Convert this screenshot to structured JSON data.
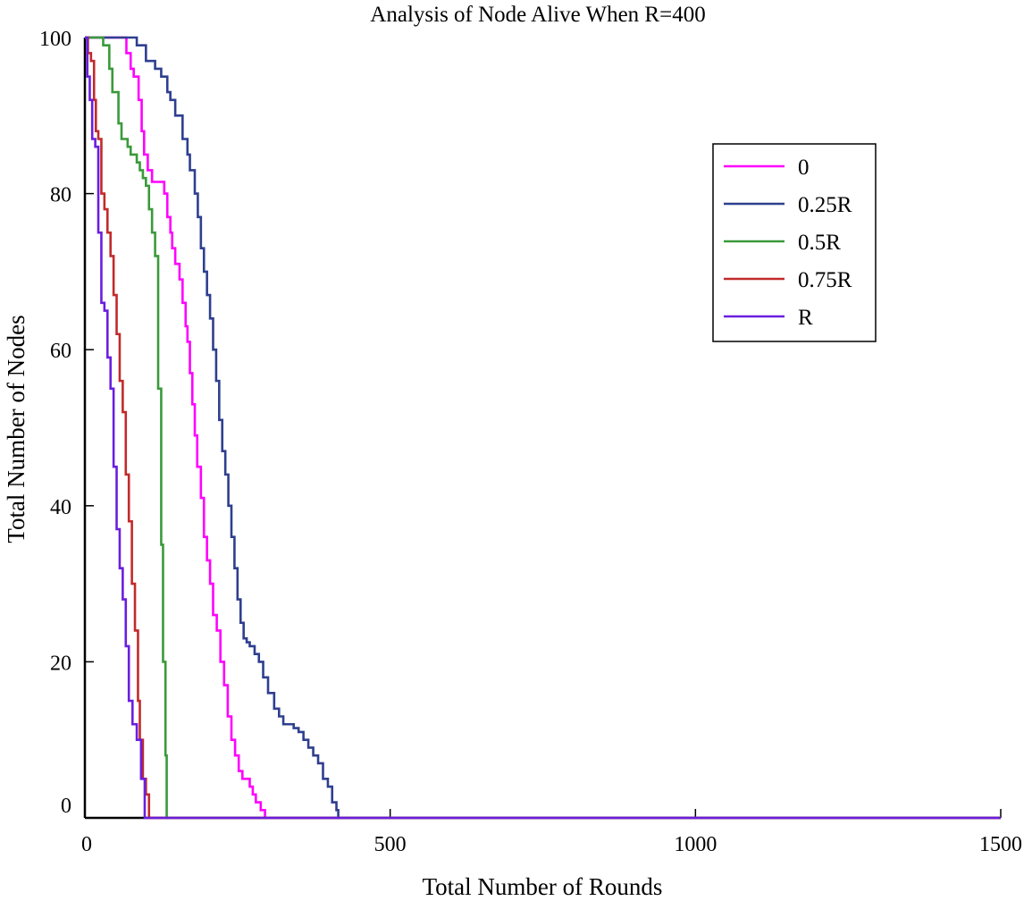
{
  "chart_data": {
    "type": "line",
    "title": "Analysis of Node Alive When R=400",
    "xlabel": "Total Number of Rounds",
    "ylabel": "Total Number of Nodes",
    "xlim": [
      0,
      1500
    ],
    "ylim": [
      0,
      100
    ],
    "xticks": [
      "0",
      "500",
      "1000",
      "1500"
    ],
    "yticks": [
      "0",
      "20",
      "40",
      "60",
      "80",
      "100"
    ],
    "legend_position": "top-right",
    "series": [
      {
        "name": "0",
        "color": "#ff00ff",
        "x": [
          0,
          60,
          68,
          75,
          80,
          88,
          93,
          97,
          103,
          110,
          115,
          130,
          135,
          140,
          143,
          148,
          155,
          160,
          165,
          168,
          172,
          176,
          180,
          184,
          190,
          195,
          200,
          205,
          210,
          216,
          222,
          228,
          234,
          240,
          246,
          252,
          258,
          264,
          270,
          275,
          280,
          288,
          295,
          300,
          305,
          310,
          310,
          1500
        ],
        "y": [
          100,
          100,
          98,
          96,
          95,
          92,
          88,
          85,
          83,
          81.5,
          81.5,
          80,
          77,
          75,
          73,
          71,
          69,
          66,
          63,
          61,
          57,
          53,
          49,
          45,
          41,
          36,
          33,
          30,
          26,
          24,
          20,
          17,
          13,
          10,
          8,
          6,
          5,
          5,
          4,
          3,
          2,
          1,
          0,
          0,
          0,
          0,
          0,
          0
        ]
      },
      {
        "name": "0.25R",
        "color": "#2e3f8f",
        "x": [
          0,
          70,
          85,
          100,
          115,
          125,
          135,
          140,
          148,
          160,
          168,
          172,
          180,
          185,
          190,
          195,
          200,
          205,
          210,
          215,
          220,
          225,
          230,
          235,
          240,
          245,
          250,
          255,
          260,
          265,
          270,
          278,
          285,
          292,
          300,
          310,
          318,
          325,
          333,
          342,
          350,
          358,
          366,
          374,
          382,
          390,
          398,
          405,
          412,
          415,
          415,
          1500
        ],
        "y": [
          100,
          100,
          99,
          97,
          96,
          95,
          93,
          92,
          90,
          87,
          85,
          83,
          80,
          77,
          73,
          70,
          67,
          64,
          60,
          56,
          51,
          47,
          44,
          40,
          36,
          32,
          28,
          25,
          23,
          22.5,
          22,
          21,
          20,
          18,
          16,
          14,
          13,
          12,
          12,
          11.5,
          11,
          10,
          9,
          8,
          7,
          5,
          4,
          2,
          1,
          0,
          0,
          0
        ]
      },
      {
        "name": "0.5R",
        "color": "#3a9a3a",
        "x": [
          0,
          25,
          30,
          40,
          45,
          55,
          60,
          70,
          75,
          85,
          90,
          95,
          100,
          105,
          110,
          115,
          120,
          125,
          128,
          132,
          134,
          1500
        ],
        "y": [
          100,
          100,
          99,
          96,
          93,
          89,
          87,
          86,
          85,
          84,
          83,
          82,
          81,
          78,
          75,
          72,
          55,
          35,
          20,
          8,
          0,
          0
        ]
      },
      {
        "name": "0.75R",
        "color": "#c22a2a",
        "x": [
          0,
          5,
          10,
          15,
          18,
          22,
          27,
          32,
          37,
          42,
          47,
          52,
          57,
          62,
          67,
          72,
          77,
          82,
          87,
          90,
          95,
          100,
          105,
          1500
        ],
        "y": [
          100,
          98,
          97,
          92,
          88,
          87,
          80,
          78,
          75,
          72,
          67,
          62,
          56,
          52,
          44,
          38,
          30,
          24,
          15,
          10,
          5,
          3,
          0,
          0
        ]
      },
      {
        "name": "R",
        "color": "#6a1ee0",
        "x": [
          0,
          4,
          8,
          12,
          17,
          22,
          27,
          32,
          37,
          42,
          47,
          52,
          57,
          62,
          67,
          72,
          78,
          85,
          92,
          98,
          98,
          1500
        ],
        "y": [
          100,
          95,
          92,
          87,
          86,
          75,
          66,
          65,
          59,
          55,
          45,
          37,
          32,
          28,
          22,
          15,
          12,
          10,
          5,
          0,
          0,
          0
        ]
      }
    ]
  }
}
